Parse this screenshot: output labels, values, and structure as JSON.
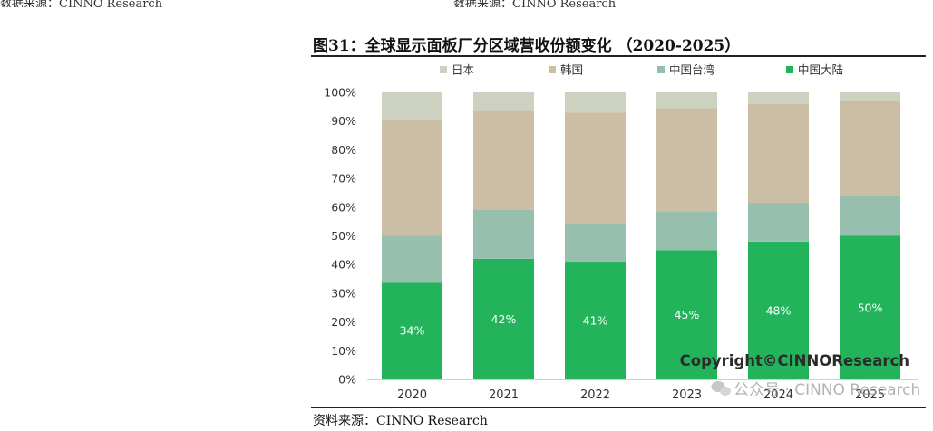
{
  "header_fragment": {
    "left": "数据来源：CINNO Research",
    "right": "数据来源：CINNO Research"
  },
  "figure": {
    "title": "图31：全球显示面板厂分区域营收份额变化 （2020-2025）",
    "source": "资料来源：CINNO Research"
  },
  "watermark": {
    "copyright": "Copyright©CINNOResearch",
    "account": "公众号 · CINNO Research"
  },
  "colors": {
    "japan": "#cdd1bf",
    "korea": "#cbbea4",
    "taiwan": "#97bfad",
    "mainland": "#22b35b"
  },
  "chart_data": {
    "type": "bar",
    "stacked": true,
    "normalized": true,
    "categories": [
      "2020",
      "2021",
      "2022",
      "2023",
      "2024",
      "2025"
    ],
    "series": [
      {
        "name": "中国大陆",
        "values": [
          34,
          42,
          41,
          45,
          48,
          50
        ],
        "labels": [
          "34%",
          "42%",
          "41%",
          "45%",
          "48%",
          "50%"
        ]
      },
      {
        "name": "中国台湾",
        "values": [
          16,
          17,
          13.5,
          13.5,
          13.5,
          14
        ]
      },
      {
        "name": "韩国",
        "values": [
          40.5,
          34.5,
          38.5,
          36,
          34.5,
          33
        ]
      },
      {
        "name": "日本",
        "values": [
          9.5,
          6.5,
          7,
          5.5,
          4,
          3
        ]
      }
    ],
    "legend_order": [
      "日本",
      "韩国",
      "中国台湾",
      "中国大陆"
    ],
    "y_ticks": [
      "0%",
      "10%",
      "20%",
      "30%",
      "40%",
      "50%",
      "60%",
      "70%",
      "80%",
      "90%",
      "100%"
    ],
    "ylim": [
      0,
      100
    ],
    "legend_position": "top",
    "grid": false
  }
}
